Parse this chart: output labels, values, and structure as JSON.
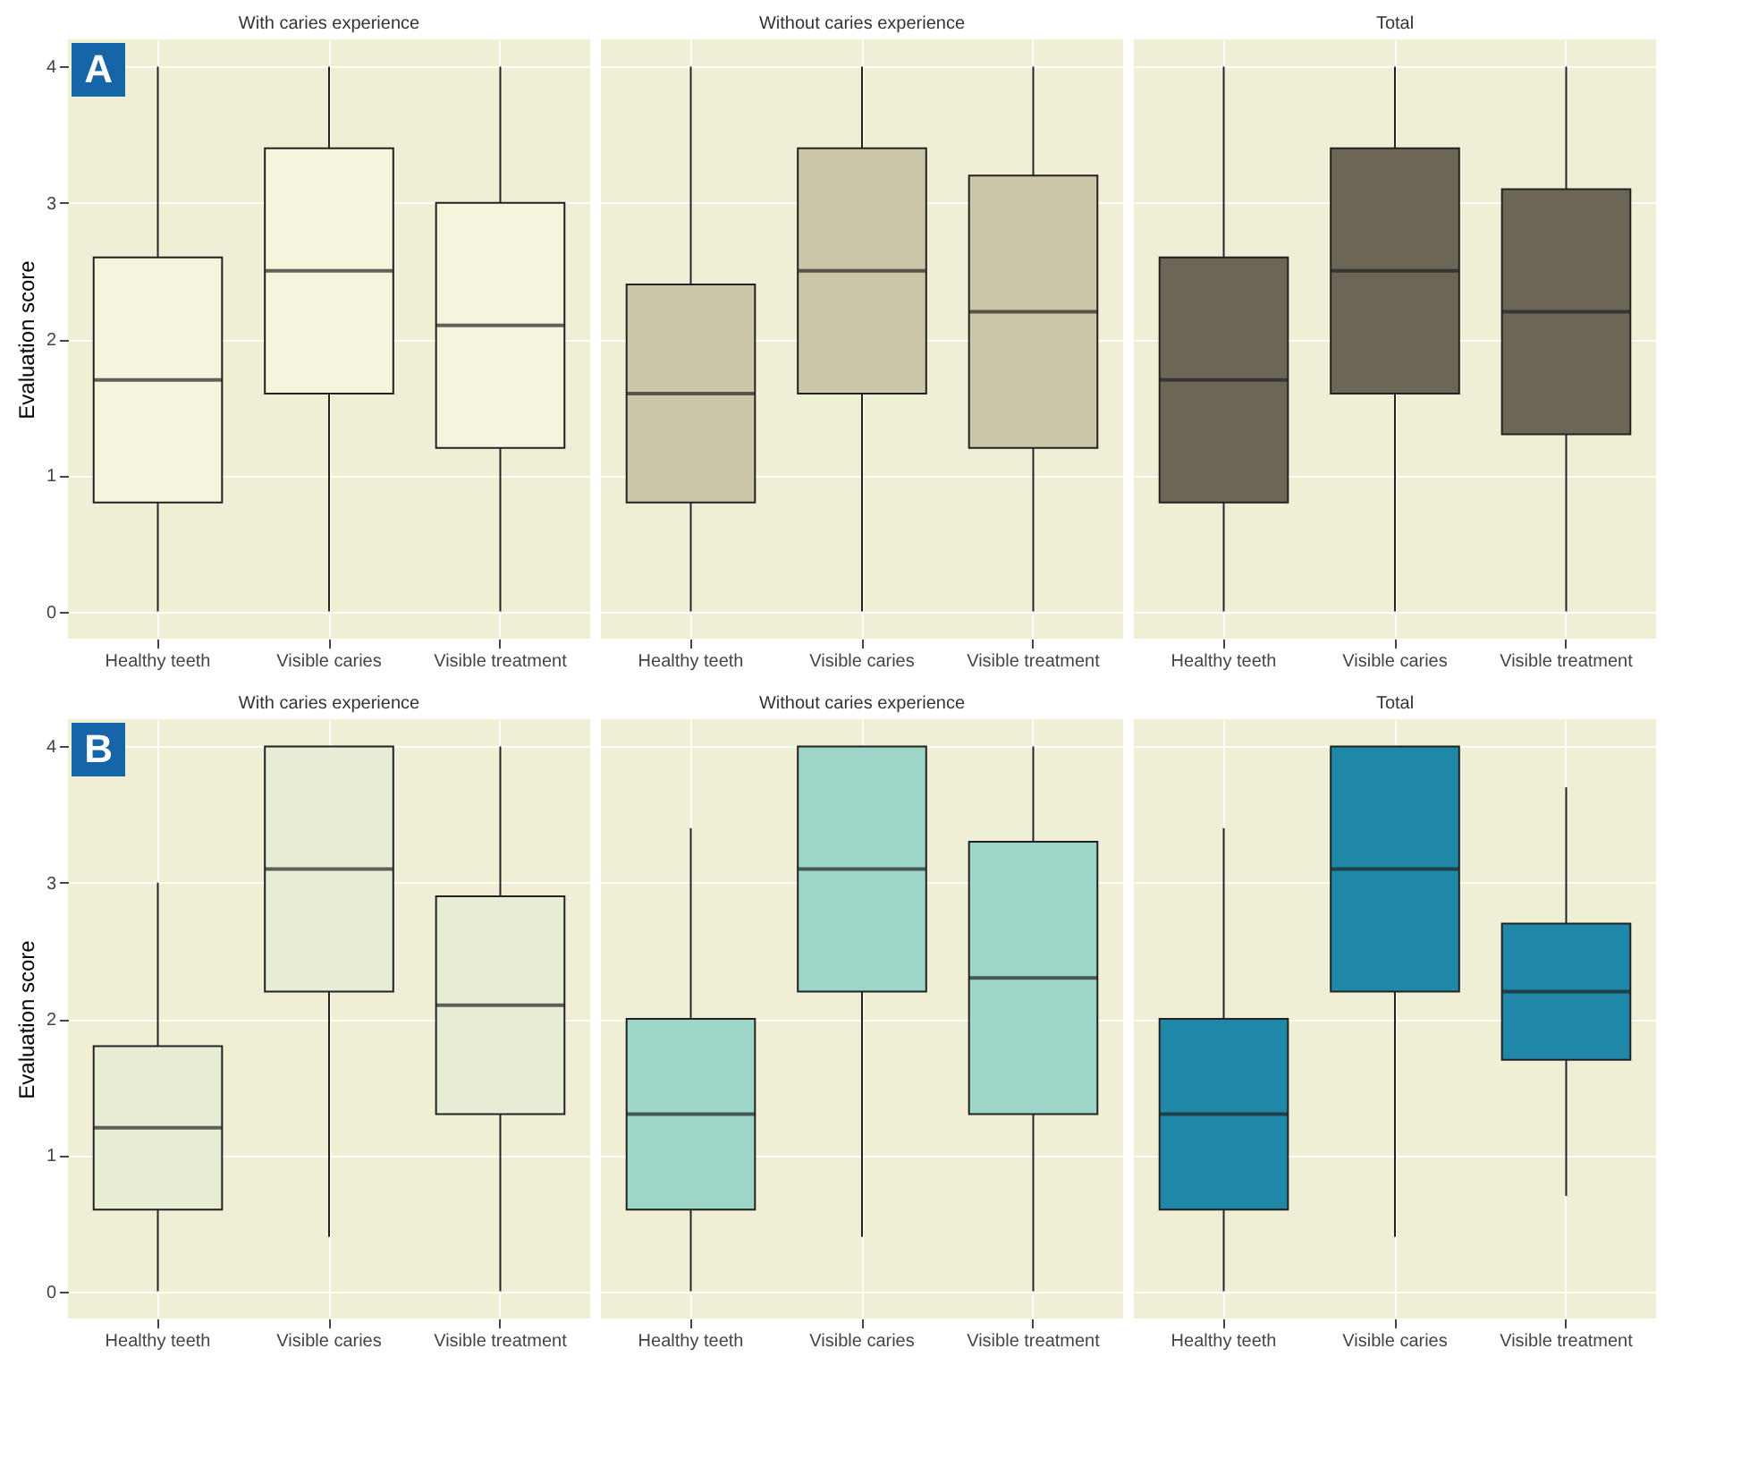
{
  "chart_data": [
    {
      "type": "box",
      "title": "With caries experience",
      "ylabel": "Evaluation score",
      "categories": [
        "Healthy teeth",
        "Visible caries",
        "Visible treatment"
      ],
      "color": "#f6f4dc",
      "ylim": [
        -0.2,
        4.2
      ],
      "yticks": [
        0,
        1,
        2,
        3,
        4
      ],
      "grid": true,
      "annotations": [
        "A"
      ],
      "boxes": [
        {
          "low": 0,
          "q1": 0.8,
          "median": 1.7,
          "q3": 2.6,
          "high": 4
        },
        {
          "low": 0,
          "q1": 1.6,
          "median": 2.5,
          "q3": 3.4,
          "high": 4
        },
        {
          "low": 0,
          "q1": 1.2,
          "median": 2.1,
          "q3": 3.0,
          "high": 4
        }
      ]
    },
    {
      "type": "box",
      "title": "Without caries experience",
      "categories": [
        "Healthy teeth",
        "Visible caries",
        "Visible treatment"
      ],
      "color": "#cbc6a8",
      "ylim": [
        -0.2,
        4.2
      ],
      "yticks": [
        0,
        1,
        2,
        3,
        4
      ],
      "grid": true,
      "tick_labels": "x",
      "boxes": [
        {
          "low": 0,
          "q1": 0.8,
          "median": 1.6,
          "q3": 2.4,
          "high": 4
        },
        {
          "low": 0,
          "q1": 1.6,
          "median": 2.5,
          "q3": 3.4,
          "high": 4
        },
        {
          "low": 0,
          "q1": 1.2,
          "median": 2.2,
          "q3": 3.2,
          "high": 4
        }
      ]
    },
    {
      "type": "box",
      "title": "Total",
      "categories": [
        "Healthy teeth",
        "Visible caries",
        "Visible treatment"
      ],
      "color": "#6b6655",
      "ylim": [
        -0.2,
        4.2
      ],
      "yticks": [
        0,
        1,
        2,
        3,
        4
      ],
      "grid": true,
      "tick_labels": "x",
      "boxes": [
        {
          "low": 0,
          "q1": 0.8,
          "median": 1.7,
          "q3": 2.6,
          "high": 4
        },
        {
          "low": 0,
          "q1": 1.6,
          "median": 2.5,
          "q3": 3.4,
          "high": 4
        },
        {
          "low": 0,
          "q1": 1.3,
          "median": 2.2,
          "q3": 3.1,
          "high": 4
        }
      ]
    },
    {
      "type": "box",
      "title": "With caries experience",
      "ylabel": "Evaluation score",
      "categories": [
        "Healthy teeth",
        "Visible caries",
        "Visible treatment"
      ],
      "color": "#e8eed6",
      "ylim": [
        -0.2,
        4.2
      ],
      "yticks": [
        0,
        1,
        2,
        3,
        4
      ],
      "grid": true,
      "annotations": [
        "B"
      ],
      "boxes": [
        {
          "low": 0,
          "q1": 0.6,
          "median": 1.2,
          "q3": 1.8,
          "high": 3.0
        },
        {
          "low": 0.4,
          "q1": 2.2,
          "median": 3.1,
          "q3": 4,
          "high": 4
        },
        {
          "low": 0,
          "q1": 1.3,
          "median": 2.1,
          "q3": 2.9,
          "high": 4
        }
      ]
    },
    {
      "type": "box",
      "title": "Without caries experience",
      "categories": [
        "Healthy teeth",
        "Visible caries",
        "Visible treatment"
      ],
      "color": "#9dd5c9",
      "ylim": [
        -0.2,
        4.2
      ],
      "yticks": [
        0,
        1,
        2,
        3,
        4
      ],
      "grid": true,
      "tick_labels": "x",
      "boxes": [
        {
          "low": 0,
          "q1": 0.6,
          "median": 1.3,
          "q3": 2.0,
          "high": 3.4
        },
        {
          "low": 0.4,
          "q1": 2.2,
          "median": 3.1,
          "q3": 4,
          "high": 4
        },
        {
          "low": 0,
          "q1": 1.3,
          "median": 2.3,
          "q3": 3.3,
          "high": 4
        }
      ]
    },
    {
      "type": "box",
      "title": "Total",
      "categories": [
        "Healthy teeth",
        "Visible caries",
        "Visible treatment"
      ],
      "color": "#1f88a8",
      "ylim": [
        -0.2,
        4.2
      ],
      "yticks": [
        0,
        1,
        2,
        3,
        4
      ],
      "grid": true,
      "tick_labels": "x",
      "boxes": [
        {
          "low": 0,
          "q1": 0.6,
          "median": 1.3,
          "q3": 2.0,
          "high": 3.4
        },
        {
          "low": 0.4,
          "q1": 2.2,
          "median": 3.1,
          "q3": 4,
          "high": 4
        },
        {
          "low": 0.7,
          "q1": 1.7,
          "median": 2.2,
          "q3": 2.7,
          "high": 3.7
        }
      ]
    }
  ]
}
